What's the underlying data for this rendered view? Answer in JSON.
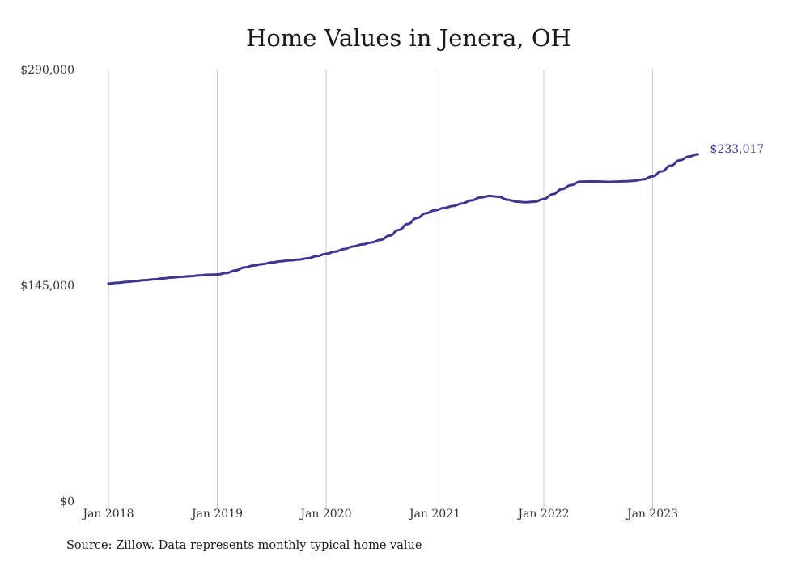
{
  "chart_data": {
    "type": "line",
    "title": "Home Values in Jenera, OH",
    "xlabel": "",
    "ylabel": "",
    "ylim": [
      0,
      290000
    ],
    "y_ticks": [
      "$0",
      "$145,000",
      "$290,000"
    ],
    "x_ticks": [
      "Jan 2018",
      "Jan 2019",
      "Jan 2020",
      "Jan 2021",
      "Jan 2022",
      "Jan 2023"
    ],
    "grid": "vertical",
    "line_color": "#3d3590",
    "end_label": "$233,017",
    "series": [
      {
        "x": [
          "2018-01",
          "2018-02",
          "2018-03",
          "2018-04",
          "2018-05",
          "2018-06",
          "2018-07",
          "2018-08",
          "2018-09",
          "2018-10",
          "2018-11",
          "2018-12",
          "2019-01",
          "2019-02",
          "2019-03",
          "2019-04",
          "2019-05",
          "2019-06",
          "2019-07",
          "2019-08",
          "2019-09",
          "2019-10",
          "2019-11",
          "2019-12",
          "2020-01",
          "2020-02",
          "2020-03",
          "2020-04",
          "2020-05",
          "2020-06",
          "2020-07",
          "2020-08",
          "2020-09",
          "2020-10",
          "2020-11",
          "2020-12",
          "2021-01",
          "2021-02",
          "2021-03",
          "2021-04",
          "2021-05",
          "2021-06",
          "2021-07",
          "2021-08",
          "2021-09",
          "2021-10",
          "2021-11",
          "2021-12",
          "2022-01",
          "2022-02",
          "2022-03",
          "2022-04",
          "2022-05",
          "2022-06",
          "2022-07",
          "2022-08",
          "2022-09",
          "2022-10",
          "2022-11",
          "2022-12",
          "2023-01",
          "2023-02",
          "2023-03",
          "2023-04",
          "2023-05",
          "2023-06"
        ],
        "values": [
          146200,
          146700,
          147300,
          147900,
          148500,
          149000,
          149600,
          150200,
          150700,
          151100,
          151600,
          152100,
          152300,
          153300,
          155000,
          157000,
          158300,
          159300,
          160300,
          161200,
          161800,
          162300,
          163200,
          164700,
          166200,
          167700,
          169400,
          171100,
          172500,
          173800,
          175500,
          178400,
          182200,
          186200,
          190200,
          193400,
          195400,
          196900,
          198300,
          200000,
          202000,
          204000,
          205000,
          204500,
          202500,
          201200,
          200800,
          201200,
          203000,
          206200,
          209600,
          212300,
          214600,
          214800,
          214800,
          214500,
          214700,
          214900,
          215300,
          216200,
          218200,
          221600,
          225400,
          229000,
          231500,
          233017
        ]
      }
    ]
  },
  "source_note": "Source: Zillow. Data represents monthly typical home value"
}
